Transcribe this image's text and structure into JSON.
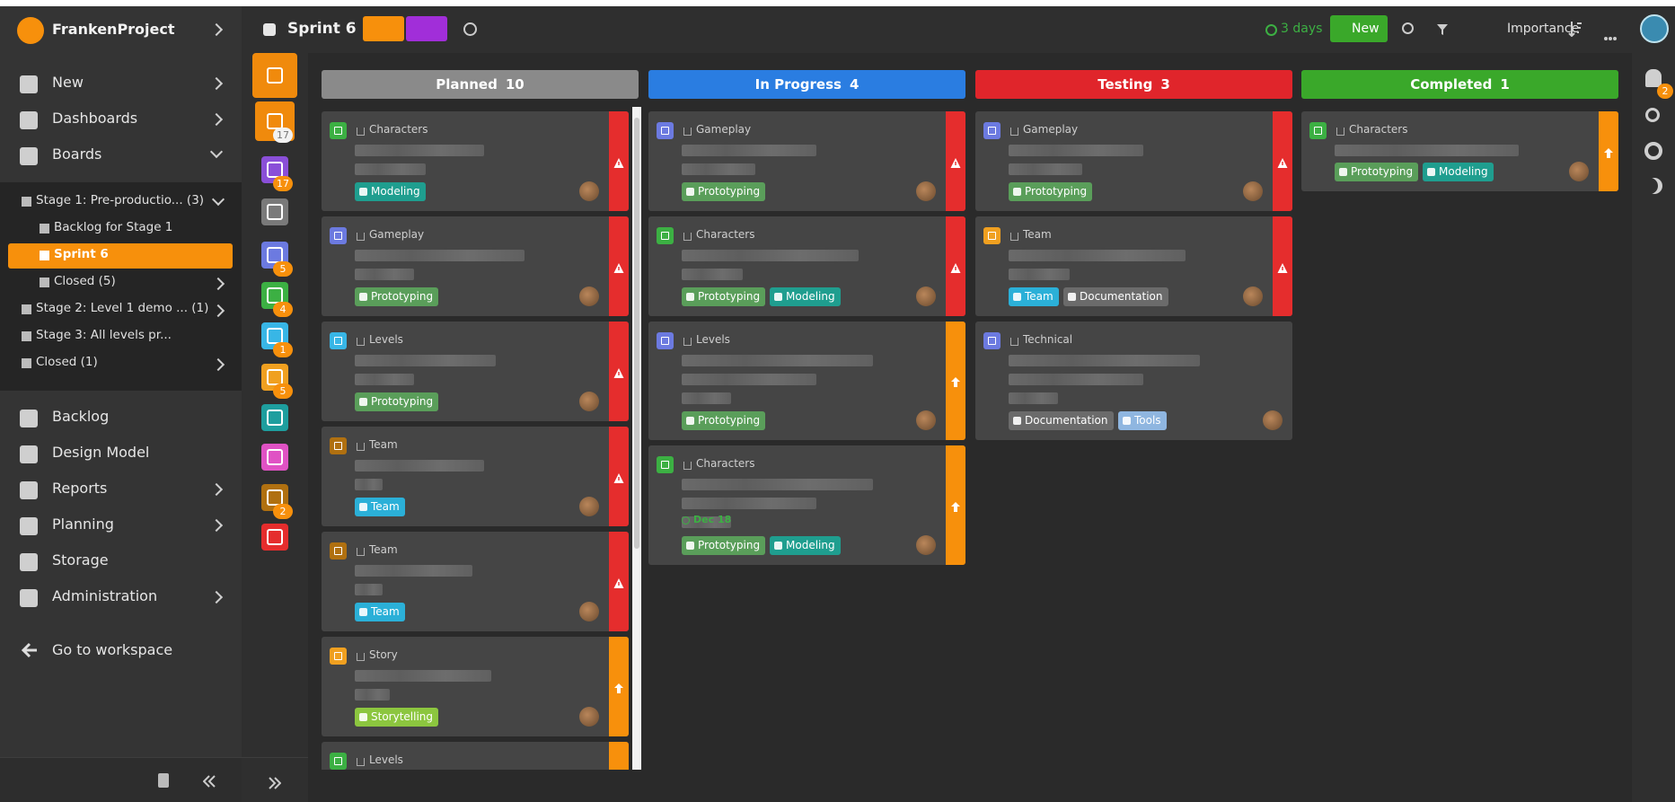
{
  "sidebar": {
    "project": "FrankenProject",
    "top_menu": [
      {
        "label": "New",
        "chevron": "right"
      },
      {
        "label": "Dashboards",
        "chevron": "right"
      },
      {
        "label": "Boards",
        "chevron": "down"
      }
    ],
    "tree": [
      {
        "label": "Stage 1: Pre-productio... (3)",
        "level": 0,
        "chevron": "down"
      },
      {
        "label": "Backlog for Stage 1",
        "level": 1
      },
      {
        "label": "Sprint 6",
        "level": 1,
        "active": true
      },
      {
        "label": "Closed (5)",
        "level": 1,
        "chevron": "right"
      },
      {
        "label": "Stage 2: Level 1 demo ... (1)",
        "level": 0,
        "chevron": "right"
      },
      {
        "label": "Stage 3: All levels pr...",
        "level": 0
      },
      {
        "label": "Closed (1)",
        "level": 0,
        "chevron": "right"
      }
    ],
    "menu": [
      {
        "label": "Backlog"
      },
      {
        "label": "Design Model"
      },
      {
        "label": "Reports",
        "chevron": "right"
      },
      {
        "label": "Planning",
        "chevron": "right"
      },
      {
        "label": "Storage"
      },
      {
        "label": "Administration",
        "chevron": "right"
      }
    ],
    "workspace": "Go to workspace"
  },
  "rail": [
    {
      "color": "#f08a0c"
    },
    {
      "color": "#f08a0c",
      "badge": 17
    },
    {
      "color": "#8a4fd8",
      "badge": 17
    },
    {
      "color": "#7a7a7a"
    },
    {
      "color": "#6c7ae0",
      "badge": 5
    },
    {
      "color": "#3cb043",
      "badge": 4
    },
    {
      "color": "#38b6e6",
      "badge": 1
    },
    {
      "color": "#f0a020",
      "badge": 5
    },
    {
      "color": "#1e9e9e"
    },
    {
      "color": "#e052c4"
    },
    {
      "color": "#b07010",
      "badge": 2
    },
    {
      "color": "#e52d2d"
    }
  ],
  "header": {
    "title": "Sprint 6",
    "due": "3 days",
    "new_button": "New",
    "sort": "Importance",
    "notifications": 2
  },
  "columns": [
    {
      "name": "Planned",
      "count": 10,
      "color": "#8a8a8a",
      "cards": [
        {
          "category": "Characters",
          "icon": "#3cb043",
          "flag": "#e52d2d",
          "tags": [
            {
              "label": "Modeling",
              "color": "#1f9e8f"
            }
          ]
        },
        {
          "category": "Gameplay",
          "icon": "#6c7ae0",
          "flag": "#e52d2d",
          "tags": [
            {
              "label": "Prototyping",
              "color": "#5a9e5a"
            }
          ]
        },
        {
          "category": "Levels",
          "icon": "#38b6e6",
          "flag": "#e52d2d",
          "tags": [
            {
              "label": "Prototyping",
              "color": "#5a9e5a"
            }
          ]
        },
        {
          "category": "Team",
          "icon": "#b07010",
          "flag": "#e52d2d",
          "tags": [
            {
              "label": "Team",
              "color": "#2bb0d8"
            }
          ]
        },
        {
          "category": "Team",
          "icon": "#b07010",
          "flag": "#e52d2d",
          "tags": [
            {
              "label": "Team",
              "color": "#2bb0d8"
            }
          ]
        },
        {
          "category": "Story",
          "icon": "#f0a020",
          "flag": "#f7900c",
          "tags": [
            {
              "label": "Storytelling",
              "color": "#8cc63f"
            }
          ]
        },
        {
          "category": "Levels",
          "icon": "#3cb043",
          "flag": "#f7900c",
          "tags": []
        }
      ]
    },
    {
      "name": "In Progress",
      "count": 4,
      "color": "#2a7de1",
      "cards": [
        {
          "category": "Gameplay",
          "icon": "#6c7ae0",
          "flag": "#e52d2d",
          "tags": [
            {
              "label": "Prototyping",
              "color": "#5a9e5a"
            }
          ]
        },
        {
          "category": "Characters",
          "icon": "#3cb043",
          "flag": "#e52d2d",
          "tags": [
            {
              "label": "Prototyping",
              "color": "#5a9e5a"
            },
            {
              "label": "Modeling",
              "color": "#1f9e8f"
            }
          ]
        },
        {
          "category": "Levels",
          "icon": "#6c7ae0",
          "flag": "#f7900c",
          "tags": [
            {
              "label": "Prototyping",
              "color": "#5a9e5a"
            }
          ]
        },
        {
          "category": "Characters",
          "icon": "#3cb043",
          "flag": "#f7900c",
          "due": "Dec 18",
          "tags": [
            {
              "label": "Prototyping",
              "color": "#5a9e5a"
            },
            {
              "label": "Modeling",
              "color": "#1f9e8f"
            }
          ]
        }
      ]
    },
    {
      "name": "Testing",
      "count": 3,
      "color": "#e0252b",
      "cards": [
        {
          "category": "Gameplay",
          "icon": "#6c7ae0",
          "flag": "#e52d2d",
          "tags": [
            {
              "label": "Prototyping",
              "color": "#5a9e5a"
            }
          ]
        },
        {
          "category": "Team",
          "icon": "#f0a020",
          "flag": "#e52d2d",
          "tags": [
            {
              "label": "Team",
              "color": "#2bb0d8"
            },
            {
              "label": "Documentation",
              "color": "#6b6b6b"
            }
          ]
        },
        {
          "category": "Technical",
          "icon": "#6c7ae0",
          "tags": [
            {
              "label": "Documentation",
              "color": "#6b6b6b"
            },
            {
              "label": "Tools",
              "color": "#8fb6e0"
            }
          ]
        }
      ]
    },
    {
      "name": "Completed",
      "count": 1,
      "color": "#3aa82a",
      "cards": [
        {
          "category": "Characters",
          "icon": "#3cb043",
          "flag": "#f7900c",
          "tags": [
            {
              "label": "Prototyping",
              "color": "#5a9e5a"
            },
            {
              "label": "Modeling",
              "color": "#1f9e8f"
            }
          ]
        }
      ]
    }
  ]
}
